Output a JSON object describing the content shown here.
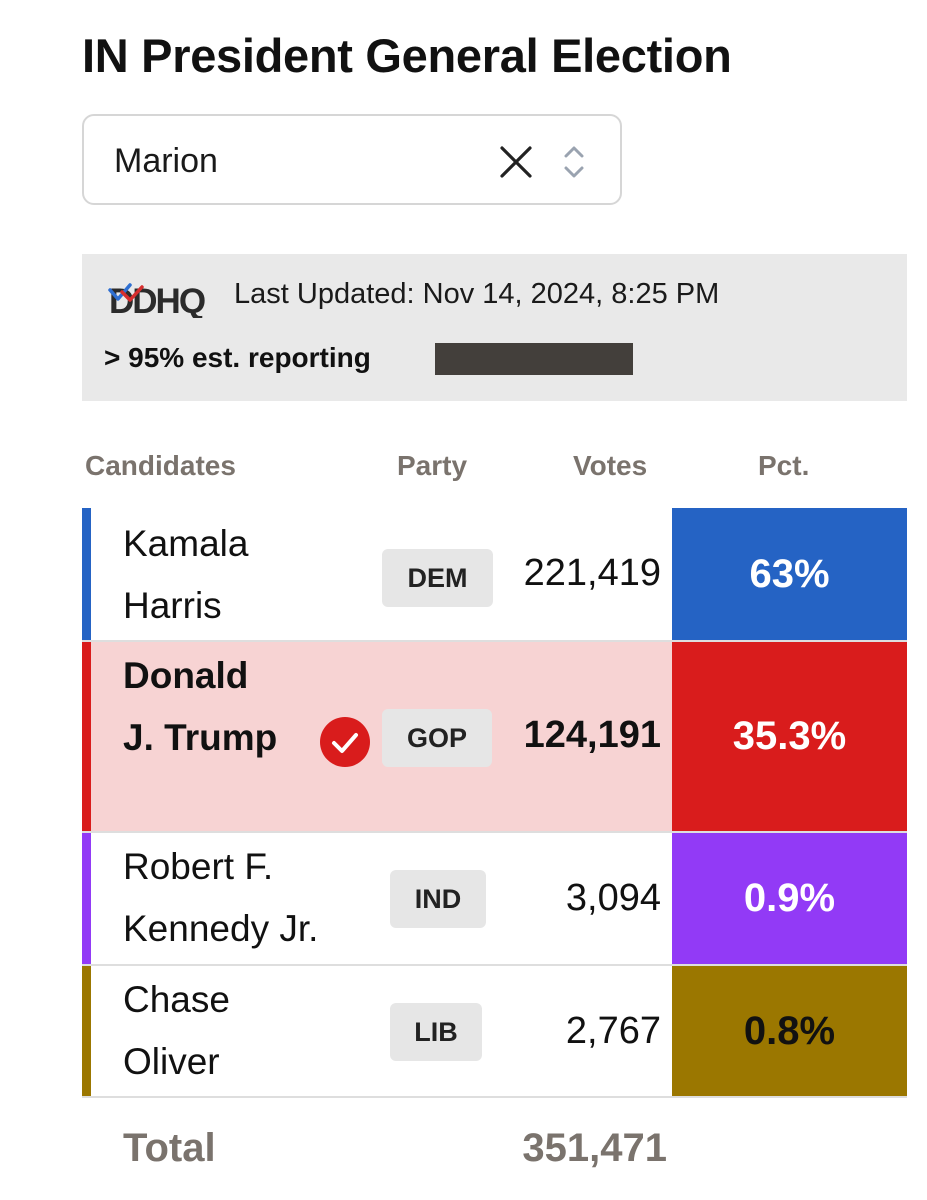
{
  "title": "IN President General Election",
  "county_select": {
    "value": "Marion",
    "clear_icon": "close-icon",
    "toggle_icon": "chevron-up-down-icon"
  },
  "banner": {
    "logo_text": "DDHQ",
    "last_updated": "Last Updated: Nov 14, 2024, 8:25 PM",
    "reporting": "> 95% est. reporting",
    "reporting_fraction": 0.95
  },
  "columns": {
    "candidates": "Candidates",
    "party": "Party",
    "votes": "Votes",
    "pct": "Pct."
  },
  "candidates": [
    {
      "name": "Kamala Harris",
      "party": "DEM",
      "votes": "221,419",
      "pct": "63%",
      "color": "#2563c4",
      "pct_text_color": "#ffffff",
      "winner": false
    },
    {
      "name": "Donald J. Trump",
      "party": "GOP",
      "votes": "124,191",
      "pct": "35.3%",
      "color": "#d91c1c",
      "pct_text_color": "#ffffff",
      "row_bg": "#f7d3d3",
      "winner": true,
      "winner_icon": "check-circle-icon"
    },
    {
      "name": "Robert F. Kennedy Jr.",
      "party": "IND",
      "votes": "3,094",
      "pct": "0.9%",
      "color": "#923af6",
      "pct_text_color": "#ffffff",
      "winner": false
    },
    {
      "name": "Chase Oliver",
      "party": "LIB",
      "votes": "2,767",
      "pct": "0.8%",
      "color": "#9b7700",
      "pct_text_color": "#111111",
      "winner": false
    }
  ],
  "total": {
    "label": "Total",
    "votes": "351,471"
  }
}
